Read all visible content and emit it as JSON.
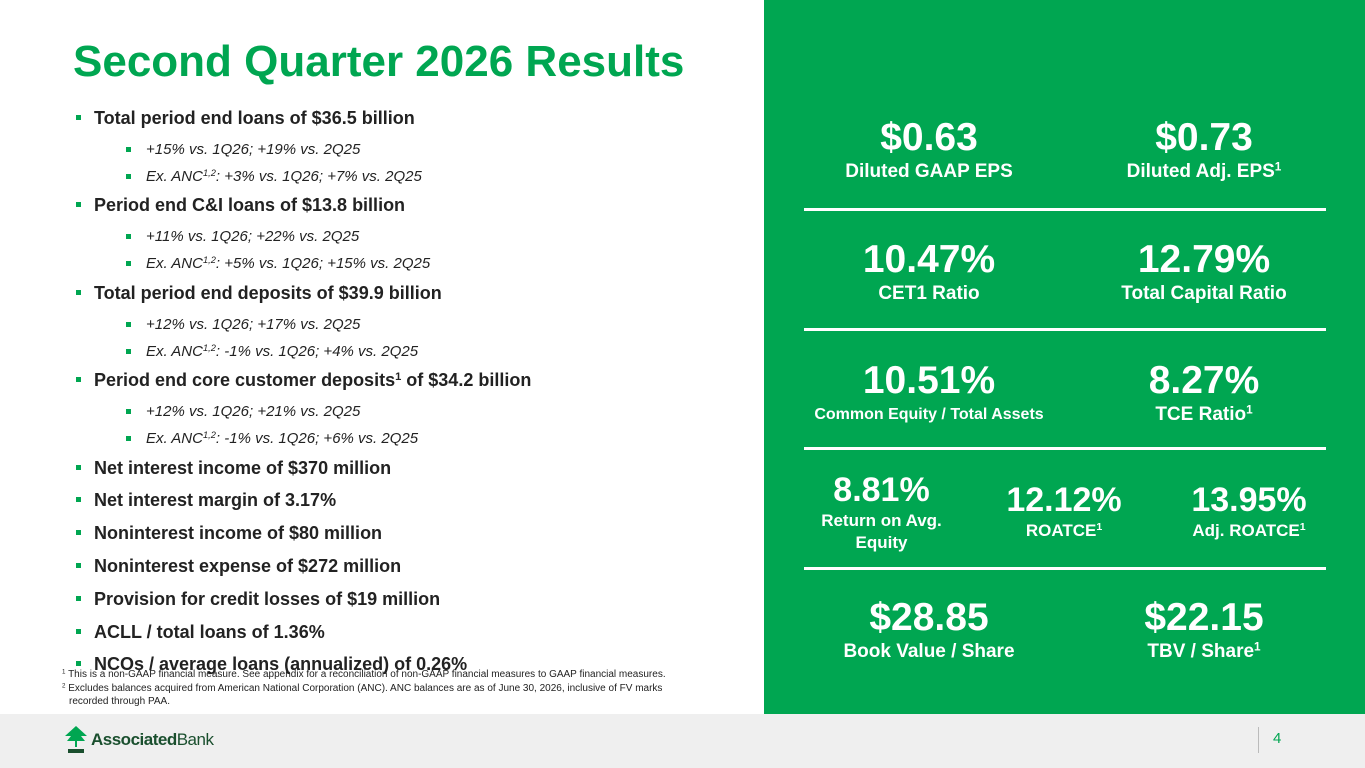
{
  "title": "Second Quarter 2026 Results",
  "bullets": [
    {
      "text": "Total period end loans of $36.5 billion"
    },
    {
      "text": "+15% vs. 1Q26; +19% vs. 2Q25"
    },
    {
      "pre": "Ex. ANC",
      "sup": "1,2",
      "post": ": +3% vs. 1Q26; +7% vs. 2Q25"
    },
    {
      "text": "Period end C&I loans of $13.8 billion"
    },
    {
      "text": "+11% vs. 1Q26; +22% vs. 2Q25"
    },
    {
      "pre": "Ex. ANC",
      "sup": "1,2",
      "post": ": +5% vs. 1Q26; +15% vs. 2Q25"
    },
    {
      "text": "Total period end deposits of $39.9 billion"
    },
    {
      "text": "+12% vs. 1Q26; +17% vs. 2Q25"
    },
    {
      "pre": "Ex. ANC",
      "sup": "1,2",
      "post": ": -1% vs. 1Q26; +4% vs. 2Q25"
    },
    {
      "pre": "Period end core customer deposits",
      "sup": "1",
      "post": " of $34.2 billion"
    },
    {
      "text": "+12% vs. 1Q26; +21% vs. 2Q25"
    },
    {
      "pre": "Ex. ANC",
      "sup": "1,2",
      "post": ": -1% vs. 1Q26; +6% vs. 2Q25"
    },
    {
      "text": "Net interest income of $370 million"
    },
    {
      "text": "Net interest margin of 3.17%"
    },
    {
      "text": "Noninterest income of $80 million"
    },
    {
      "text": "Noninterest expense of $272 million"
    },
    {
      "text": "Provision for credit losses of $19 million"
    },
    {
      "text": "ACLL / total loans of 1.36%"
    },
    {
      "text": "NCOs / average loans (annualized) of 0.26%"
    }
  ],
  "footnotes": {
    "f1": {
      "num": "1",
      "text": "This is a non-GAAP financial measure. See appendix for a reconciliation of non-GAAP financial measures to GAAP financial measures."
    },
    "f2": {
      "num": "2",
      "text": "Excludes balances acquired from American National Corporation (ANC). ANC balances are as of June 30, 2026, inclusive of FV marks",
      "cont": "recorded through PAA."
    }
  },
  "kpis": {
    "gaap_eps": {
      "value": "$0.63",
      "label": "Diluted GAAP EPS"
    },
    "adj_eps": {
      "value": "$0.73",
      "label": "Diluted Adj. EPS",
      "sup": "1"
    },
    "cet1": {
      "value": "10.47%",
      "label": "CET1 Ratio"
    },
    "total_capital": {
      "value": "12.79%",
      "label": "Total Capital Ratio"
    },
    "equity_assets": {
      "value": "10.51%",
      "label": "Common Equity / Total Assets"
    },
    "tce": {
      "value": "8.27%",
      "label": "TCE Ratio",
      "sup": "1"
    },
    "roae": {
      "value": "8.81%",
      "label": "Return on Avg. Equity"
    },
    "roatce": {
      "value": "12.12%",
      "label": "ROATCE",
      "sup": "1"
    },
    "adj_roatce": {
      "value": "13.95%",
      "label": "Adj. ROATCE",
      "sup": "1"
    },
    "bvps": {
      "value": "$28.85",
      "label": "Book Value / Share"
    },
    "tbvps": {
      "value": "$22.15",
      "label": "TBV / Share",
      "sup": "1"
    }
  },
  "footer": {
    "logo_bold": "Associated",
    "logo_thin": "Bank",
    "page": "4"
  },
  "colors": {
    "brand_green": "#00a651",
    "logo_green": "#1a4f2e",
    "footer_band": "#efefef"
  }
}
